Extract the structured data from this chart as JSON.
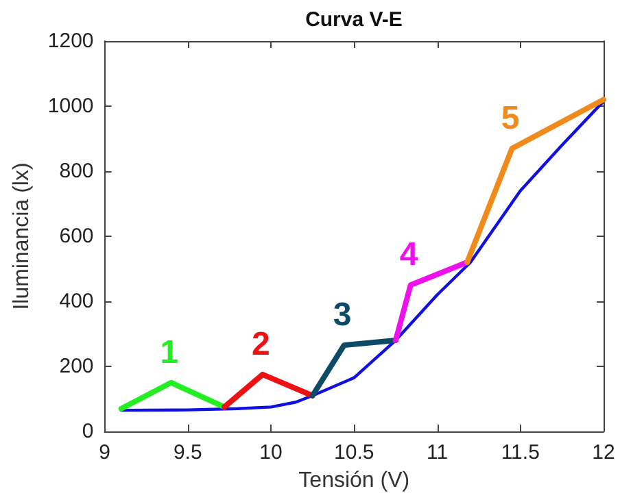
{
  "chart_data": {
    "type": "line",
    "title": "Curva V-E",
    "xlabel": "Tensión (V)",
    "ylabel": "Iluminancia (lx)",
    "xlim": [
      9,
      12
    ],
    "xticks": [
      9,
      9.5,
      10,
      10.5,
      11,
      11.5,
      12
    ],
    "ylim": [
      0,
      1200
    ],
    "yticks": [
      0,
      200,
      400,
      600,
      800,
      1000,
      1200
    ],
    "grid": false,
    "marker": "none",
    "line_style": "solid",
    "series": [
      {
        "color": "#1010e0",
        "x": [
          9.1,
          9.5,
          9.8,
          10,
          10.15,
          10.25,
          10.5,
          10.75,
          11,
          11.2,
          11.5,
          11.75,
          12
        ],
        "values": [
          65,
          66,
          70,
          75,
          90,
          110,
          165,
          280,
          420,
          520,
          740,
          880,
          1015
        ]
      },
      {
        "name": "1",
        "color": "#22ee22",
        "x": [
          9.1,
          9.4,
          9.72
        ],
        "values": [
          70,
          150,
          75
        ]
      },
      {
        "name": "2",
        "color": "#ee1111",
        "x": [
          9.72,
          9.95,
          10.25
        ],
        "values": [
          75,
          175,
          110
        ]
      },
      {
        "name": "3",
        "color": "#0d4a66",
        "x": [
          10.25,
          10.44,
          10.75
        ],
        "values": [
          110,
          265,
          280
        ]
      },
      {
        "name": "4",
        "color": "#ee11ee",
        "x": [
          10.75,
          10.84,
          11.18
        ],
        "values": [
          280,
          450,
          520
        ]
      },
      {
        "name": "5",
        "color": "#f08a1a",
        "x": [
          11.18,
          11.45,
          12
        ],
        "values": [
          520,
          870,
          1020
        ]
      }
    ]
  }
}
